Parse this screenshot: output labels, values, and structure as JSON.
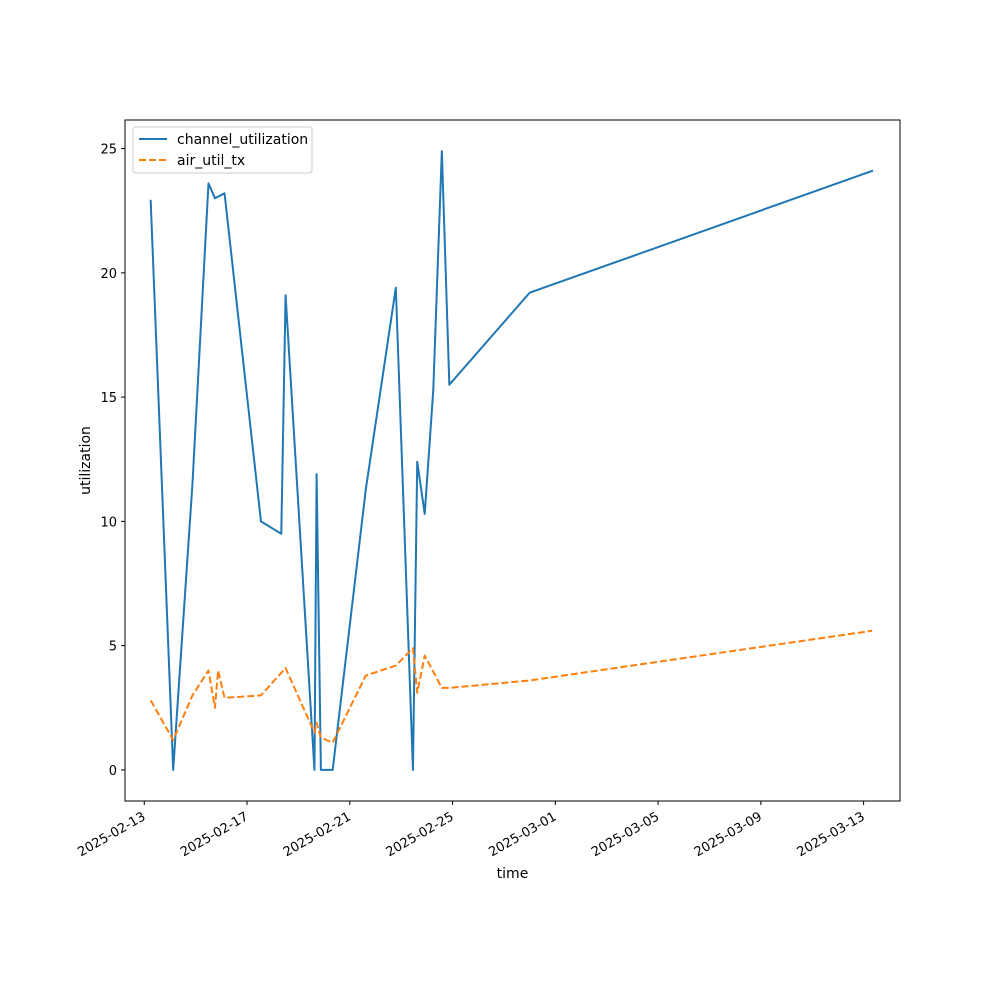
{
  "chart_data": {
    "type": "line",
    "xlabel": "time",
    "ylabel": "utilization",
    "x_type": "date",
    "xlim": [
      "2025-02-12T06:00",
      "2025-03-14T10:00"
    ],
    "ylim": [
      -1.25,
      26.15
    ],
    "x_ticks": [
      "2025-02-13",
      "2025-02-17",
      "2025-02-21",
      "2025-02-25",
      "2025-03-01",
      "2025-03-05",
      "2025-03-09",
      "2025-03-13"
    ],
    "y_ticks": [
      0,
      5,
      10,
      15,
      20,
      25
    ],
    "legend_position": "top-left",
    "grid": false,
    "series": [
      {
        "name": "channel_utilization",
        "color": "#1f77b4",
        "style": "solid",
        "points": [
          {
            "x": "2025-02-13T06:00",
            "y": 22.9
          },
          {
            "x": "2025-02-14T03:00",
            "y": 0.0
          },
          {
            "x": "2025-02-14T21:00",
            "y": 11.5
          },
          {
            "x": "2025-02-15T12:00",
            "y": 23.6
          },
          {
            "x": "2025-02-15T18:00",
            "y": 23.0
          },
          {
            "x": "2025-02-16T03:00",
            "y": 23.2
          },
          {
            "x": "2025-02-17T13:00",
            "y": 10.0
          },
          {
            "x": "2025-02-18T08:00",
            "y": 9.5
          },
          {
            "x": "2025-02-18T12:00",
            "y": 19.1
          },
          {
            "x": "2025-02-19T15:00",
            "y": 0.0
          },
          {
            "x": "2025-02-19T17:00",
            "y": 11.9
          },
          {
            "x": "2025-02-19T21:00",
            "y": 0.0
          },
          {
            "x": "2025-02-20T08:00",
            "y": 0.0
          },
          {
            "x": "2025-02-21T15:00",
            "y": 11.3
          },
          {
            "x": "2025-02-22T19:00",
            "y": 19.4
          },
          {
            "x": "2025-02-23T11:00",
            "y": 0.0
          },
          {
            "x": "2025-02-23T15:00",
            "y": 12.4
          },
          {
            "x": "2025-02-23T22:00",
            "y": 10.3
          },
          {
            "x": "2025-02-24T06:00",
            "y": 15.3
          },
          {
            "x": "2025-02-24T14:00",
            "y": 24.9
          },
          {
            "x": "2025-02-24T21:00",
            "y": 15.5
          },
          {
            "x": "2025-02-28T00:00",
            "y": 19.2
          },
          {
            "x": "2025-03-13T08:00",
            "y": 24.1
          }
        ]
      },
      {
        "name": "air_util_tx",
        "color": "#ff7f0e",
        "style": "dashed",
        "points": [
          {
            "x": "2025-02-13T06:00",
            "y": 2.8
          },
          {
            "x": "2025-02-14T03:00",
            "y": 1.2
          },
          {
            "x": "2025-02-14T21:00",
            "y": 3.0
          },
          {
            "x": "2025-02-15T12:00",
            "y": 4.0
          },
          {
            "x": "2025-02-15T18:00",
            "y": 2.5
          },
          {
            "x": "2025-02-15T21:00",
            "y": 4.0
          },
          {
            "x": "2025-02-16T03:00",
            "y": 2.9
          },
          {
            "x": "2025-02-17T13:00",
            "y": 3.0
          },
          {
            "x": "2025-02-18T12:00",
            "y": 4.1
          },
          {
            "x": "2025-02-19T15:00",
            "y": 1.5
          },
          {
            "x": "2025-02-19T17:00",
            "y": 1.9
          },
          {
            "x": "2025-02-19T21:00",
            "y": 1.3
          },
          {
            "x": "2025-02-20T08:00",
            "y": 1.1
          },
          {
            "x": "2025-02-21T15:00",
            "y": 3.8
          },
          {
            "x": "2025-02-22T19:00",
            "y": 4.2
          },
          {
            "x": "2025-02-23T11:00",
            "y": 4.9
          },
          {
            "x": "2025-02-23T15:00",
            "y": 3.1
          },
          {
            "x": "2025-02-23T22:00",
            "y": 4.6
          },
          {
            "x": "2025-02-24T14:00",
            "y": 3.3
          },
          {
            "x": "2025-02-24T21:00",
            "y": 3.3
          },
          {
            "x": "2025-02-28T00:00",
            "y": 3.6
          },
          {
            "x": "2025-03-13T08:00",
            "y": 5.6
          }
        ]
      }
    ]
  }
}
